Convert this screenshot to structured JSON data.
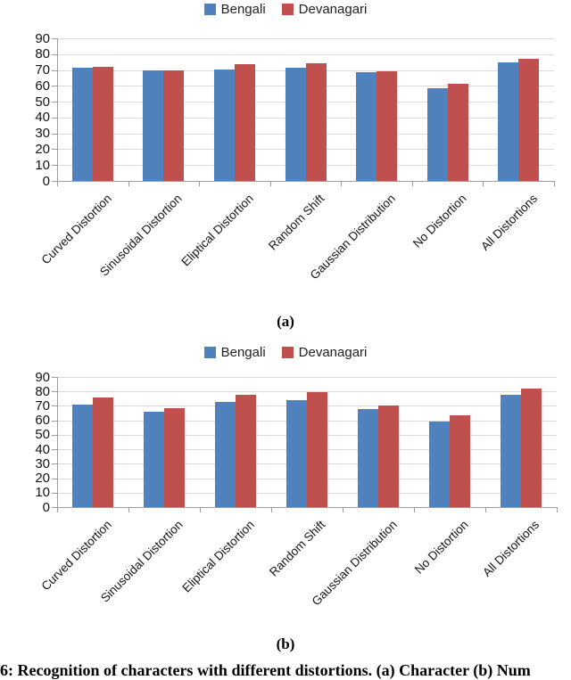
{
  "figure": {
    "caption_a": "(a)",
    "caption_b": "(b)",
    "bottom_caption": "6: Recognition of characters with different distortions. (a) Character (b) Num"
  },
  "colors": {
    "bengali_blue": "#4f81bd",
    "devanagari_red": "#c0504d",
    "gridline": "#d9d9d9",
    "axis": "#9e9e9e",
    "text": "#141414"
  },
  "chart_data": [
    {
      "id": "a",
      "type": "bar",
      "title": "",
      "legend_position": "top",
      "grid": true,
      "categories": [
        "Curved Distortion",
        "Sinusoidal Distortion",
        "Eliptical Distortion",
        "Random Shift",
        "Gaussian Distribution",
        "No Distortion",
        "All Distortions"
      ],
      "series": [
        {
          "name": "Bengali",
          "color": "#4f81bd",
          "values": [
            71.5,
            69.5,
            70.5,
            71.5,
            68.5,
            58.5,
            75
          ]
        },
        {
          "name": "Devanagari",
          "color": "#c0504d",
          "values": [
            72,
            70,
            73.5,
            74.5,
            69,
            61.5,
            77
          ]
        }
      ],
      "ylim": [
        0,
        90
      ],
      "yticks": [
        0,
        10,
        20,
        30,
        40,
        50,
        60,
        70,
        80,
        90
      ],
      "xlabel": "",
      "ylabel": ""
    },
    {
      "id": "b",
      "type": "bar",
      "title": "",
      "legend_position": "top",
      "grid": true,
      "categories": [
        "Curved Distortion",
        "Sinusoidal Distortion",
        "Eliptical Distortion",
        "Random Shift",
        "Gaussian Distribution",
        "No Distortion",
        "All Distortions"
      ],
      "series": [
        {
          "name": "Bengali",
          "color": "#4f81bd",
          "values": [
            71,
            66,
            72.5,
            74,
            68,
            59.5,
            78
          ]
        },
        {
          "name": "Devanagari",
          "color": "#c0504d",
          "values": [
            76,
            68.5,
            78,
            79.5,
            70.5,
            63.5,
            82
          ]
        }
      ],
      "ylim": [
        0,
        90
      ],
      "yticks": [
        0,
        10,
        20,
        30,
        40,
        50,
        60,
        70,
        80,
        90
      ],
      "xlabel": "",
      "ylabel": ""
    }
  ]
}
